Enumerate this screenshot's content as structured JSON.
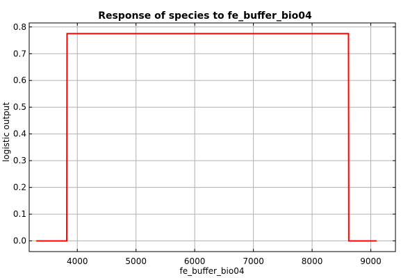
{
  "chart_data": {
    "type": "line",
    "title": "Response of species to fe_buffer_bio04",
    "xlabel": "fe_buffer_bio04",
    "ylabel": "logistic output",
    "xlim": [
      3180,
      9420
    ],
    "ylim": [
      -0.04,
      0.815
    ],
    "xticks": [
      4000,
      5000,
      6000,
      7000,
      8000,
      9000
    ],
    "yticks": [
      0.0,
      0.1,
      0.2,
      0.3,
      0.4,
      0.5,
      0.6,
      0.7,
      0.8
    ],
    "xtick_labels": [
      "4000",
      "5000",
      "6000",
      "7000",
      "8000",
      "9000"
    ],
    "ytick_labels": [
      "0.0",
      "0.1",
      "0.2",
      "0.3",
      "0.4",
      "0.5",
      "0.6",
      "0.7",
      "0.8"
    ],
    "grid": true,
    "series": [
      {
        "color": "#ff0000",
        "x": [
          3300,
          3820,
          3825,
          8620,
          8625,
          9100
        ],
        "y": [
          0.0,
          0.0,
          0.775,
          0.775,
          0.0,
          0.0
        ]
      }
    ]
  }
}
